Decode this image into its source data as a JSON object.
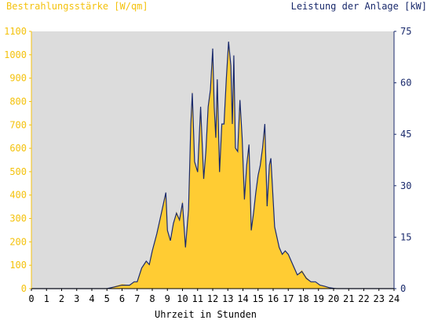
{
  "chart_data": {
    "type": "area",
    "left_axis_title": "Bestrahlungsstärke [W/qm]",
    "right_axis_title": "Leistung der Anlage [kW]",
    "xlabel": "Uhrzeit in Stunden",
    "xlim": [
      0,
      24
    ],
    "x_ticks": [
      "0",
      "1",
      "2",
      "3",
      "4",
      "5",
      "6",
      "7",
      "8",
      "9",
      "10",
      "11",
      "12",
      "13",
      "14",
      "15",
      "16",
      "17",
      "18",
      "19",
      "20",
      "21",
      "22",
      "23",
      "24"
    ],
    "ylim_left": [
      0,
      1100
    ],
    "y_ticks_left": [
      "0",
      "100",
      "200",
      "300",
      "400",
      "500",
      "600",
      "700",
      "800",
      "900",
      "1000",
      "1100"
    ],
    "ylim_right": [
      0,
      75
    ],
    "y_ticks_right": [
      "0",
      "15",
      "30",
      "45",
      "60",
      "75"
    ],
    "grid": false,
    "colors": {
      "irradiance_fill": "#FFCC33",
      "irradiance_tick": "#F4C20D",
      "power_line": "#1A2A6C",
      "plot_background": "#DCDCDC"
    },
    "series": [
      {
        "axis": "left",
        "style": "area",
        "x": [
          0,
          5,
          5.5,
          6.0,
          6.5,
          6.8,
          7.0,
          7.3,
          7.6,
          7.8,
          8.0,
          8.3,
          8.6,
          8.9,
          9.0,
          9.2,
          9.4,
          9.6,
          9.8,
          10.0,
          10.2,
          10.4,
          10.55,
          10.65,
          10.8,
          11.0,
          11.2,
          11.4,
          11.55,
          11.7,
          11.85,
          12.0,
          12.1,
          12.2,
          12.3,
          12.45,
          12.6,
          12.75,
          12.9,
          13.05,
          13.2,
          13.3,
          13.4,
          13.5,
          13.65,
          13.8,
          13.95,
          14.1,
          14.25,
          14.4,
          14.55,
          14.7,
          14.85,
          15.0,
          15.15,
          15.3,
          15.45,
          15.6,
          15.75,
          15.85,
          15.95,
          16.1,
          16.25,
          16.4,
          16.6,
          16.8,
          17.0,
          17.3,
          17.6,
          17.9,
          18.2,
          18.5,
          18.8,
          19.1,
          19.4,
          19.7,
          20.0,
          20.2,
          24
        ],
        "y": [
          0,
          0,
          10,
          20,
          15,
          30,
          30,
          90,
          120,
          100,
          160,
          240,
          320,
          410,
          250,
          200,
          280,
          330,
          300,
          380,
          180,
          350,
          700,
          850,
          550,
          500,
          780,
          470,
          600,
          780,
          850,
          1020,
          780,
          650,
          900,
          500,
          700,
          700,
          900,
          1060,
          950,
          700,
          1000,
          600,
          580,
          800,
          650,
          380,
          520,
          620,
          250,
          330,
          420,
          480,
          520,
          600,
          700,
          350,
          520,
          560,
          440,
          270,
          220,
          170,
          150,
          160,
          150,
          100,
          60,
          80,
          50,
          30,
          25,
          15,
          10,
          5,
          2,
          0,
          0
        ]
      },
      {
        "axis": "right",
        "style": "line",
        "x": [
          0,
          5,
          5.5,
          6.0,
          6.5,
          6.8,
          7.0,
          7.3,
          7.6,
          7.8,
          8.0,
          8.3,
          8.6,
          8.9,
          9.0,
          9.2,
          9.4,
          9.6,
          9.8,
          10.0,
          10.2,
          10.4,
          10.55,
          10.65,
          10.8,
          11.0,
          11.2,
          11.4,
          11.55,
          11.7,
          11.85,
          12.0,
          12.1,
          12.2,
          12.3,
          12.45,
          12.6,
          12.75,
          12.9,
          13.05,
          13.2,
          13.3,
          13.4,
          13.5,
          13.65,
          13.8,
          13.95,
          14.1,
          14.25,
          14.4,
          14.55,
          14.7,
          14.85,
          15.0,
          15.15,
          15.3,
          15.45,
          15.6,
          15.75,
          15.85,
          15.95,
          16.1,
          16.25,
          16.4,
          16.6,
          16.8,
          17.0,
          17.3,
          17.6,
          17.9,
          18.2,
          18.5,
          18.8,
          19.1,
          19.4,
          19.7,
          20.0,
          20.2,
          24
        ],
        "y": [
          0,
          0,
          0.5,
          1,
          1,
          2,
          2,
          6,
          8,
          7,
          11,
          16,
          22,
          28,
          17,
          14,
          19,
          22,
          20,
          25,
          12,
          23,
          48,
          57,
          37,
          34,
          53,
          32,
          40,
          53,
          58,
          70,
          53,
          44,
          61,
          34,
          48,
          48,
          61,
          72,
          65,
          48,
          68,
          41,
          40,
          55,
          44,
          26,
          36,
          42,
          17,
          22,
          28,
          33,
          36,
          41,
          48,
          24,
          36,
          38,
          30,
          18,
          15,
          12,
          10,
          11,
          10,
          7,
          4,
          5,
          3,
          2,
          2,
          1,
          0.7,
          0.3,
          0.1,
          0,
          0
        ]
      }
    ]
  }
}
